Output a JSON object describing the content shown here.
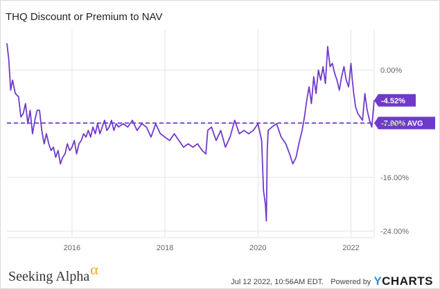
{
  "chart_data": {
    "type": "line",
    "title": "THQ Discount or Premium to NAV",
    "xlabel": "",
    "ylabel": "",
    "xlim": [
      2014.6,
      2022.5
    ],
    "ylim": [
      -25,
      6
    ],
    "x_ticks": [
      {
        "value": 2016,
        "label": "2016"
      },
      {
        "value": 2018,
        "label": "2018"
      },
      {
        "value": 2020,
        "label": "2020"
      },
      {
        "value": 2022,
        "label": "2022"
      }
    ],
    "y_ticks": [
      {
        "value": 0,
        "label": "0.00%"
      },
      {
        "value": -8,
        "label": "-8.00%"
      },
      {
        "value": -16,
        "label": "-16.00%"
      },
      {
        "value": -24,
        "label": "-24.00%"
      }
    ],
    "series": [
      {
        "name": "THQ Discount or Premium to NAV",
        "color": "#6f3ac9",
        "x": [
          2014.6,
          2014.64,
          2014.68,
          2014.72,
          2014.78,
          2014.85,
          2014.9,
          2014.95,
          2015.0,
          2015.05,
          2015.1,
          2015.15,
          2015.2,
          2015.25,
          2015.3,
          2015.35,
          2015.4,
          2015.45,
          2015.5,
          2015.55,
          2015.6,
          2015.65,
          2015.7,
          2015.75,
          2015.8,
          2015.85,
          2015.9,
          2015.95,
          2016.0,
          2016.05,
          2016.1,
          2016.15,
          2016.2,
          2016.25,
          2016.3,
          2016.35,
          2016.4,
          2016.45,
          2016.5,
          2016.55,
          2016.6,
          2016.65,
          2016.7,
          2016.75,
          2016.8,
          2016.85,
          2016.9,
          2016.95,
          2017.0,
          2017.1,
          2017.2,
          2017.3,
          2017.4,
          2017.5,
          2017.6,
          2017.7,
          2017.8,
          2017.9,
          2018.0,
          2018.1,
          2018.2,
          2018.3,
          2018.4,
          2018.5,
          2018.6,
          2018.7,
          2018.8,
          2018.88,
          2018.92,
          2019.0,
          2019.1,
          2019.2,
          2019.3,
          2019.4,
          2019.5,
          2019.6,
          2019.7,
          2019.8,
          2019.9,
          2020.0,
          2020.08,
          2020.12,
          2020.16,
          2020.18,
          2020.2,
          2020.22,
          2020.3,
          2020.4,
          2020.5,
          2020.6,
          2020.68,
          2020.75,
          2020.82,
          2020.88,
          2020.95,
          2021.0,
          2021.05,
          2021.1,
          2021.15,
          2021.2,
          2021.25,
          2021.3,
          2021.35,
          2021.4,
          2021.45,
          2021.5,
          2021.55,
          2021.6,
          2021.65,
          2021.7,
          2021.75,
          2021.8,
          2021.85,
          2021.9,
          2021.95,
          2022.0,
          2022.03,
          2022.06,
          2022.1,
          2022.15,
          2022.2,
          2022.25,
          2022.3,
          2022.35,
          2022.4,
          2022.45,
          2022.5
        ],
        "values": [
          4.0,
          1.5,
          -3.0,
          -1.5,
          -3.5,
          -4.0,
          -7.0,
          -6.5,
          -5.0,
          -8.0,
          -6.0,
          -9.5,
          -7.5,
          -6.0,
          -6.0,
          -9.0,
          -11.0,
          -9.5,
          -11.0,
          -12.0,
          -11.5,
          -13.0,
          -12.0,
          -14.0,
          -13.0,
          -12.5,
          -11.0,
          -12.0,
          -11.5,
          -10.5,
          -12.5,
          -11.0,
          -10.5,
          -9.5,
          -10.0,
          -9.0,
          -10.0,
          -8.5,
          -9.5,
          -8.0,
          -9.5,
          -8.5,
          -7.5,
          -9.0,
          -8.5,
          -7.5,
          -9.0,
          -8.0,
          -8.5,
          -8.0,
          -8.5,
          -7.5,
          -9.0,
          -8.0,
          -8.5,
          -10.0,
          -8.0,
          -9.5,
          -10.0,
          -10.5,
          -9.5,
          -10.5,
          -11.5,
          -11.0,
          -11.5,
          -11.0,
          -12.0,
          -12.5,
          -9.0,
          -8.5,
          -10.5,
          -9.0,
          -11.5,
          -10.0,
          -7.5,
          -9.5,
          -9.0,
          -9.5,
          -9.0,
          -8.0,
          -10.5,
          -18.0,
          -20.0,
          -22.5,
          -12.0,
          -9.0,
          -8.5,
          -8.0,
          -10.0,
          -11.0,
          -12.5,
          -14.0,
          -13.0,
          -11.0,
          -9.0,
          -7.0,
          -4.5,
          -2.5,
          -5.0,
          -1.0,
          -3.5,
          0.0,
          -1.5,
          0.5,
          -2.0,
          3.5,
          0.5,
          1.0,
          -0.5,
          -1.5,
          -3.0,
          -1.0,
          0.5,
          -1.5,
          -2.5,
          1.0,
          -1.5,
          -3.5,
          -5.5,
          -6.5,
          -7.0,
          -7.5,
          -3.5,
          -6.0,
          -7.5,
          -8.5,
          -4.52
        ]
      }
    ],
    "reference_lines": [
      {
        "value": -7.9,
        "label": "-7.90% AVG",
        "style": "dashed"
      }
    ],
    "last_value": {
      "value": -4.52,
      "label": "-4.52%"
    }
  },
  "footer": {
    "brand": "Seeking Alpha",
    "brand_mark": "α",
    "timestamp": "Jul 12 2022, 10:56AM EDT.",
    "powered_by": "Powered by",
    "provider_logo_y": "Y",
    "provider_logo_rest": "CHARTS"
  },
  "colors": {
    "series": "#6f3ac9",
    "grid": "#e3e3e3",
    "axis_text": "#666666",
    "brand_accent": "#f5a623",
    "provider_accent": "#2d8fd5"
  }
}
